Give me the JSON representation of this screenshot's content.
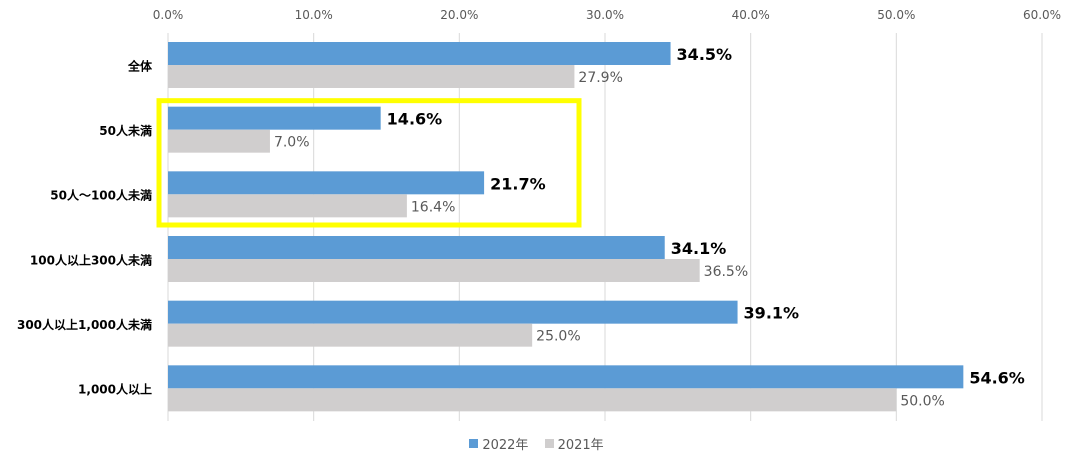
{
  "chart_data": {
    "type": "bar",
    "orientation": "horizontal",
    "categories": [
      "全体",
      "50人未満",
      "50人～100人未満",
      "100人以上300人未満",
      "300人以上1,000人未満",
      "1,000人以上"
    ],
    "series": [
      {
        "name": "2022年",
        "color": "#5b9bd5",
        "values": [
          34.5,
          14.6,
          21.7,
          34.1,
          39.1,
          54.6
        ],
        "labels": [
          "34.5%",
          "14.6%",
          "21.7%",
          "34.1%",
          "39.1%",
          "54.6%"
        ]
      },
      {
        "name": "2021年",
        "color": "#d0cece",
        "values": [
          27.9,
          7.0,
          16.4,
          36.5,
          25.0,
          50.0
        ],
        "labels": [
          "27.9%",
          "7.0%",
          "16.4%",
          "36.5%",
          "25.0%",
          "50.0%"
        ]
      }
    ],
    "xlim": [
      0,
      60
    ],
    "xticks": [
      "0.0%",
      "10.0%",
      "20.0%",
      "30.0%",
      "40.0%",
      "50.0%",
      "60.0%"
    ],
    "grid": true,
    "legend_position": "bottom",
    "highlight": {
      "categories": [
        "50人未満",
        "50人～100人未満"
      ],
      "color": "#ffff00"
    }
  }
}
